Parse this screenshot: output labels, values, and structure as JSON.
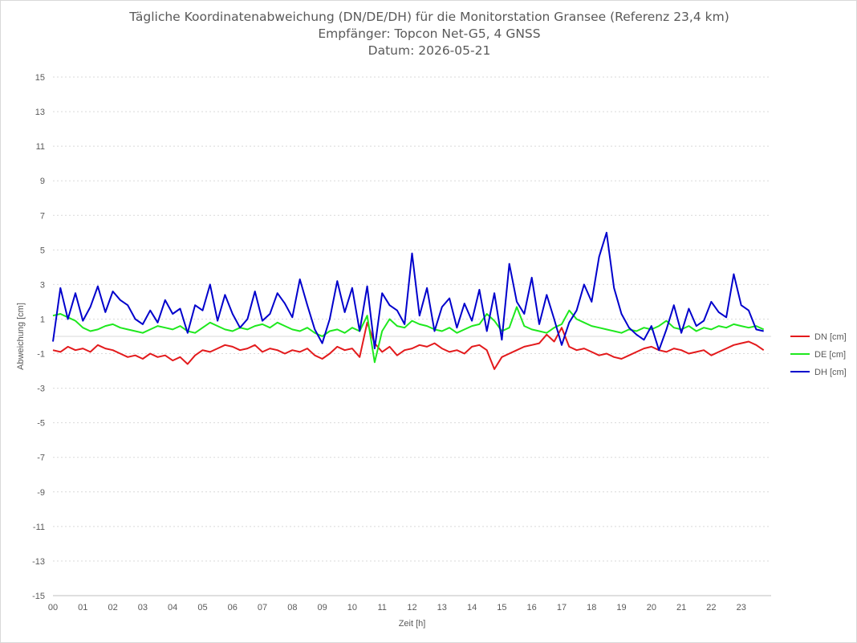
{
  "chart_data": {
    "type": "line",
    "title": "Tägliche Koordinatenabweichung (DN/DE/DH) für die Monitorstation Gransee (Referenz 23,4 km)",
    "subtitle1": "Empfänger: Topcon Net-G5, 4 GNSS",
    "subtitle2": "Datum: 2026-05-21",
    "xlabel": "Zeit [h]",
    "ylabel": "Abweichung [cm]",
    "xlim": [
      0,
      24
    ],
    "ylim": [
      -15,
      15
    ],
    "x_ticks": [
      "00",
      "01",
      "02",
      "03",
      "04",
      "05",
      "06",
      "07",
      "08",
      "09",
      "10",
      "11",
      "12",
      "13",
      "14",
      "15",
      "16",
      "17",
      "18",
      "19",
      "20",
      "21",
      "22",
      "23"
    ],
    "y_ticks": [
      15,
      13,
      11,
      9,
      7,
      5,
      3,
      1,
      -1,
      -3,
      -5,
      -7,
      -9,
      -11,
      -13,
      -15
    ],
    "grid": "horizontal dotted",
    "legend_position": "right",
    "series": [
      {
        "name": "DN [cm]",
        "color": "#e31a1c",
        "x": [
          0.0,
          0.25,
          0.5,
          0.75,
          1.0,
          1.25,
          1.5,
          1.75,
          2.0,
          2.25,
          2.5,
          2.75,
          3.0,
          3.25,
          3.5,
          3.75,
          4.0,
          4.25,
          4.5,
          4.75,
          5.0,
          5.25,
          5.5,
          5.75,
          6.0,
          6.25,
          6.5,
          6.75,
          7.0,
          7.25,
          7.5,
          7.75,
          8.0,
          8.25,
          8.5,
          8.75,
          9.0,
          9.25,
          9.5,
          9.75,
          10.0,
          10.25,
          10.5,
          10.75,
          11.0,
          11.25,
          11.5,
          11.75,
          12.0,
          12.25,
          12.5,
          12.75,
          13.0,
          13.25,
          13.5,
          13.75,
          14.0,
          14.25,
          14.5,
          14.75,
          15.0,
          15.25,
          15.5,
          15.75,
          16.0,
          16.25,
          16.5,
          16.75,
          17.0,
          17.25,
          17.5,
          17.75,
          18.0,
          18.25,
          18.5,
          18.75,
          19.0,
          19.25,
          19.5,
          19.75,
          20.0,
          20.25,
          20.5,
          20.75,
          21.0,
          21.25,
          21.5,
          21.75,
          22.0,
          22.25,
          22.5,
          22.75,
          23.0,
          23.25,
          23.5,
          23.75
        ],
        "values": [
          -0.8,
          -0.9,
          -0.6,
          -0.8,
          -0.7,
          -0.9,
          -0.5,
          -0.7,
          -0.8,
          -1.0,
          -1.2,
          -1.1,
          -1.3,
          -1.0,
          -1.2,
          -1.1,
          -1.4,
          -1.2,
          -1.6,
          -1.1,
          -0.8,
          -0.9,
          -0.7,
          -0.5,
          -0.6,
          -0.8,
          -0.7,
          -0.5,
          -0.9,
          -0.7,
          -0.8,
          -1.0,
          -0.8,
          -0.9,
          -0.7,
          -1.1,
          -1.3,
          -1.0,
          -0.6,
          -0.8,
          -0.7,
          -1.2,
          0.8,
          -0.4,
          -0.9,
          -0.6,
          -1.1,
          -0.8,
          -0.7,
          -0.5,
          -0.6,
          -0.4,
          -0.7,
          -0.9,
          -0.8,
          -1.0,
          -0.6,
          -0.5,
          -0.8,
          -1.9,
          -1.2,
          -1.0,
          -0.8,
          -0.6,
          -0.5,
          -0.4,
          0.1,
          -0.3,
          0.5,
          -0.6,
          -0.8,
          -0.7,
          -0.9,
          -1.1,
          -1.0,
          -1.2,
          -1.3,
          -1.1,
          -0.9,
          -0.7,
          -0.6,
          -0.8,
          -0.9,
          -0.7,
          -0.8,
          -1.0,
          -0.9,
          -0.8,
          -1.1,
          -0.9,
          -0.7,
          -0.5,
          -0.4,
          -0.3,
          -0.5,
          -0.8
        ]
      },
      {
        "name": "DE [cm]",
        "color": "#1ee81e",
        "x": [
          0.0,
          0.25,
          0.5,
          0.75,
          1.0,
          1.25,
          1.5,
          1.75,
          2.0,
          2.25,
          2.5,
          2.75,
          3.0,
          3.25,
          3.5,
          3.75,
          4.0,
          4.25,
          4.5,
          4.75,
          5.0,
          5.25,
          5.5,
          5.75,
          6.0,
          6.25,
          6.5,
          6.75,
          7.0,
          7.25,
          7.5,
          7.75,
          8.0,
          8.25,
          8.5,
          8.75,
          9.0,
          9.25,
          9.5,
          9.75,
          10.0,
          10.25,
          10.5,
          10.75,
          11.0,
          11.25,
          11.5,
          11.75,
          12.0,
          12.25,
          12.5,
          12.75,
          13.0,
          13.25,
          13.5,
          13.75,
          14.0,
          14.25,
          14.5,
          14.75,
          15.0,
          15.25,
          15.5,
          15.75,
          16.0,
          16.25,
          16.5,
          16.75,
          17.0,
          17.25,
          17.5,
          17.75,
          18.0,
          18.25,
          18.5,
          18.75,
          19.0,
          19.25,
          19.5,
          19.75,
          20.0,
          20.25,
          20.5,
          20.75,
          21.0,
          21.25,
          21.5,
          21.75,
          22.0,
          22.25,
          22.5,
          22.75,
          23.0,
          23.25,
          23.5,
          23.75
        ],
        "values": [
          1.2,
          1.3,
          1.1,
          0.9,
          0.5,
          0.3,
          0.4,
          0.6,
          0.7,
          0.5,
          0.4,
          0.3,
          0.2,
          0.4,
          0.6,
          0.5,
          0.4,
          0.6,
          0.3,
          0.2,
          0.5,
          0.8,
          0.6,
          0.4,
          0.3,
          0.5,
          0.4,
          0.6,
          0.7,
          0.5,
          0.8,
          0.6,
          0.4,
          0.3,
          0.5,
          0.2,
          0.0,
          0.3,
          0.4,
          0.2,
          0.5,
          0.3,
          1.2,
          -1.5,
          0.3,
          1.0,
          0.6,
          0.5,
          0.9,
          0.7,
          0.6,
          0.4,
          0.3,
          0.5,
          0.2,
          0.4,
          0.6,
          0.7,
          1.3,
          0.9,
          0.3,
          0.5,
          1.7,
          0.6,
          0.4,
          0.3,
          0.2,
          0.5,
          0.7,
          1.5,
          1.0,
          0.8,
          0.6,
          0.5,
          0.4,
          0.3,
          0.2,
          0.4,
          0.3,
          0.5,
          0.4,
          0.6,
          0.9,
          0.5,
          0.4,
          0.6,
          0.3,
          0.5,
          0.4,
          0.6,
          0.5,
          0.7,
          0.6,
          0.5,
          0.6,
          0.4
        ]
      },
      {
        "name": "DH [cm]",
        "color": "#0000cc",
        "x": [
          0.0,
          0.25,
          0.5,
          0.75,
          1.0,
          1.25,
          1.5,
          1.75,
          2.0,
          2.25,
          2.5,
          2.75,
          3.0,
          3.25,
          3.5,
          3.75,
          4.0,
          4.25,
          4.5,
          4.75,
          5.0,
          5.25,
          5.5,
          5.75,
          6.0,
          6.25,
          6.5,
          6.75,
          7.0,
          7.25,
          7.5,
          7.75,
          8.0,
          8.25,
          8.5,
          8.75,
          9.0,
          9.25,
          9.5,
          9.75,
          10.0,
          10.25,
          10.5,
          10.75,
          11.0,
          11.25,
          11.5,
          11.75,
          12.0,
          12.25,
          12.5,
          12.75,
          13.0,
          13.25,
          13.5,
          13.75,
          14.0,
          14.25,
          14.5,
          14.75,
          15.0,
          15.25,
          15.5,
          15.75,
          16.0,
          16.25,
          16.5,
          16.75,
          17.0,
          17.25,
          17.5,
          17.75,
          18.0,
          18.25,
          18.5,
          18.75,
          19.0,
          19.25,
          19.5,
          19.75,
          20.0,
          20.25,
          20.5,
          20.75,
          21.0,
          21.25,
          21.5,
          21.75,
          22.0,
          22.25,
          22.5,
          22.75,
          23.0,
          23.25,
          23.5,
          23.75
        ],
        "values": [
          -0.3,
          2.8,
          1.0,
          2.5,
          0.9,
          1.7,
          2.9,
          1.4,
          2.6,
          2.1,
          1.8,
          1.0,
          0.7,
          1.5,
          0.8,
          2.1,
          1.3,
          1.6,
          0.2,
          1.8,
          1.5,
          3.0,
          0.9,
          2.4,
          1.3,
          0.5,
          1.0,
          2.6,
          0.9,
          1.3,
          2.5,
          1.9,
          1.1,
          3.3,
          1.8,
          0.4,
          -0.4,
          1.0,
          3.2,
          1.4,
          2.8,
          0.3,
          2.9,
          -0.7,
          2.5,
          1.8,
          1.5,
          0.7,
          4.8,
          1.2,
          2.8,
          0.3,
          1.7,
          2.2,
          0.5,
          1.9,
          0.9,
          2.7,
          0.3,
          2.5,
          -0.2,
          4.2,
          2.0,
          1.3,
          3.4,
          0.7,
          2.4,
          1.0,
          -0.5,
          0.8,
          1.5,
          3.0,
          2.0,
          4.6,
          6.0,
          2.8,
          1.3,
          0.5,
          0.1,
          -0.2,
          0.6,
          -0.8,
          0.4,
          1.8,
          0.2,
          1.6,
          0.6,
          0.9,
          2.0,
          1.4,
          1.1,
          3.6,
          1.8,
          1.5,
          0.4,
          0.3
        ]
      }
    ]
  }
}
